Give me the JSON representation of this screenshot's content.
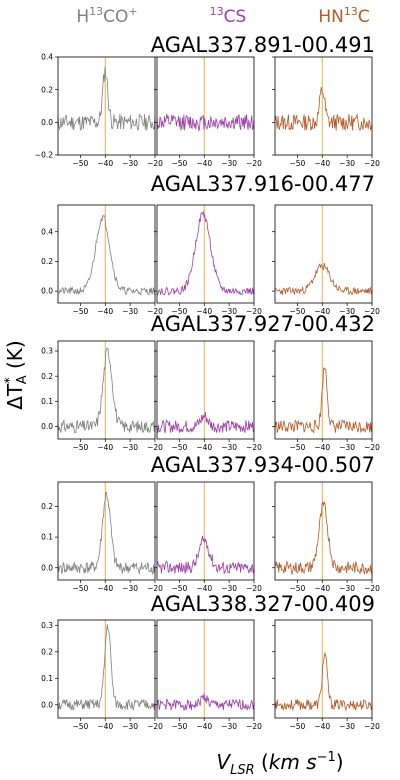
{
  "figure": {
    "columns": [
      {
        "key": "h13cop",
        "label": "H13CO+",
        "color": "#808080"
      },
      {
        "key": "13cs",
        "label": "13CS",
        "color": "#9b3fa6"
      },
      {
        "key": "hn13c",
        "label": "HN13C",
        "color": "#b35a28"
      }
    ],
    "xlabel": "V_LSR (km s^-1)",
    "ylabel": "ΔT*_A (K)",
    "marker_line_color": "#f2a533"
  },
  "chart_data": [
    {
      "source": "AGAL337.891-00.491",
      "type": "line",
      "xlim": [
        -59,
        -20
      ],
      "xticks": [
        -50,
        -40,
        -30,
        -20
      ],
      "ylim": [
        -0.2,
        0.4
      ],
      "yticks": [
        -0.2,
        0.0,
        0.2,
        0.4
      ],
      "vline": -40,
      "series": [
        {
          "name": "H13CO+",
          "peak": 0.32,
          "center": -40.0,
          "width": 1.0,
          "noise": 0.03,
          "seed": 11
        },
        {
          "name": "13CS",
          "peak": 0.0,
          "center": -40.0,
          "width": 1.0,
          "noise": 0.03,
          "seed": 12
        },
        {
          "name": "HN13C",
          "peak": 0.2,
          "center": -40.0,
          "width": 1.0,
          "noise": 0.03,
          "seed": 13
        }
      ]
    },
    {
      "source": "AGAL337.916-00.477",
      "type": "line",
      "xlim": [
        -59,
        -20
      ],
      "xticks": [
        -50,
        -40,
        -30,
        -20
      ],
      "ylim": [
        -0.08,
        0.58
      ],
      "yticks": [
        0.0,
        0.2,
        0.4
      ],
      "vline": -40,
      "series": [
        {
          "name": "H13CO+",
          "peak": 0.5,
          "center": -41.0,
          "width": 2.8,
          "noise": 0.015,
          "seed": 21
        },
        {
          "name": "13CS",
          "peak": 0.52,
          "center": -40.5,
          "width": 3.0,
          "noise": 0.015,
          "seed": 22
        },
        {
          "name": "HN13C",
          "peak": 0.17,
          "center": -40.0,
          "width": 3.0,
          "noise": 0.015,
          "seed": 23
        }
      ]
    },
    {
      "source": "AGAL337.927-00.432",
      "type": "line",
      "xlim": [
        -59,
        -20
      ],
      "xticks": [
        -50,
        -40,
        -30,
        -20
      ],
      "ylim": [
        -0.05,
        0.34
      ],
      "yticks": [
        0.0,
        0.1,
        0.2,
        0.3
      ],
      "vline": -40,
      "series": [
        {
          "name": "H13CO+",
          "peak": 0.3,
          "center": -39.0,
          "width": 1.8,
          "noise": 0.015,
          "seed": 31
        },
        {
          "name": "13CS",
          "peak": 0.04,
          "center": -40.0,
          "width": 1.5,
          "noise": 0.015,
          "seed": 32
        },
        {
          "name": "HN13C",
          "peak": 0.24,
          "center": -39.0,
          "width": 1.0,
          "noise": 0.015,
          "seed": 33
        }
      ]
    },
    {
      "source": "AGAL337.934-00.507",
      "type": "line",
      "xlim": [
        -59,
        -20
      ],
      "xticks": [
        -50,
        -40,
        -30,
        -20
      ],
      "ylim": [
        -0.04,
        0.28
      ],
      "yticks": [
        0.0,
        0.1,
        0.2
      ],
      "vline": -40,
      "series": [
        {
          "name": "H13CO+",
          "peak": 0.24,
          "center": -39.5,
          "width": 1.6,
          "noise": 0.012,
          "seed": 41
        },
        {
          "name": "13CS",
          "peak": 0.09,
          "center": -40.0,
          "width": 2.0,
          "noise": 0.012,
          "seed": 42
        },
        {
          "name": "HN13C",
          "peak": 0.2,
          "center": -39.5,
          "width": 1.8,
          "noise": 0.012,
          "seed": 43
        }
      ]
    },
    {
      "source": "AGAL338.327-00.409",
      "type": "line",
      "xlim": [
        -59,
        -20
      ],
      "xticks": [
        -50,
        -40,
        -30,
        -20
      ],
      "ylim": [
        -0.05,
        0.32
      ],
      "yticks": [
        0.0,
        0.1,
        0.2,
        0.3
      ],
      "vline": -40,
      "series": [
        {
          "name": "H13CO+",
          "peak": 0.3,
          "center": -39.0,
          "width": 1.2,
          "noise": 0.012,
          "seed": 51
        },
        {
          "name": "13CS",
          "peak": 0.03,
          "center": -40.0,
          "width": 1.2,
          "noise": 0.012,
          "seed": 52
        },
        {
          "name": "HN13C",
          "peak": 0.19,
          "center": -39.0,
          "width": 1.0,
          "noise": 0.012,
          "seed": 53
        }
      ]
    }
  ]
}
